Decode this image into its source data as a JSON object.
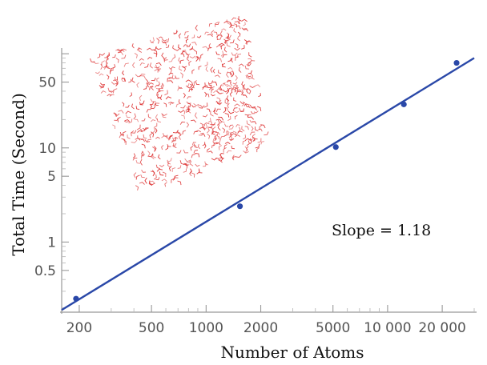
{
  "chart_data": {
    "type": "scatter",
    "title": "",
    "xlabel": "Number of Atoms",
    "ylabel": "Total Time (Second)",
    "x_scale": "log",
    "y_scale": "log",
    "xlim": [
      160,
      30000
    ],
    "ylim": [
      0.18,
      115
    ],
    "grid": false,
    "x_ticks": [
      {
        "value": 200,
        "label": "200"
      },
      {
        "value": 500,
        "label": "500"
      },
      {
        "value": 1000,
        "label": "1000"
      },
      {
        "value": 2000,
        "label": "2000"
      },
      {
        "value": 5000,
        "label": "5000"
      },
      {
        "value": 10000,
        "label": "10 000"
      },
      {
        "value": 20000,
        "label": "20 000"
      }
    ],
    "y_ticks": [
      {
        "value": 0.5,
        "label": "0.5"
      },
      {
        "value": 1,
        "label": "1"
      },
      {
        "value": 5,
        "label": "5"
      },
      {
        "value": 10,
        "label": "10"
      },
      {
        "value": 50,
        "label": "50"
      }
    ],
    "series": [
      {
        "points": [
          {
            "x": 192,
            "y": 0.25
          },
          {
            "x": 1536,
            "y": 2.4
          },
          {
            "x": 5184,
            "y": 10.2
          },
          {
            "x": 12288,
            "y": 29
          },
          {
            "x": 24000,
            "y": 80
          }
        ]
      }
    ],
    "fit_line": {
      "slope": 1.18,
      "points": [
        [
          160,
          0.19
        ],
        [
          30000,
          90
        ]
      ]
    },
    "annotations": [
      {
        "text": "Slope = 1.18"
      }
    ],
    "colors": {
      "points": "#2a48a8",
      "line": "#2a48a8",
      "molecules": "#dd3333"
    }
  }
}
